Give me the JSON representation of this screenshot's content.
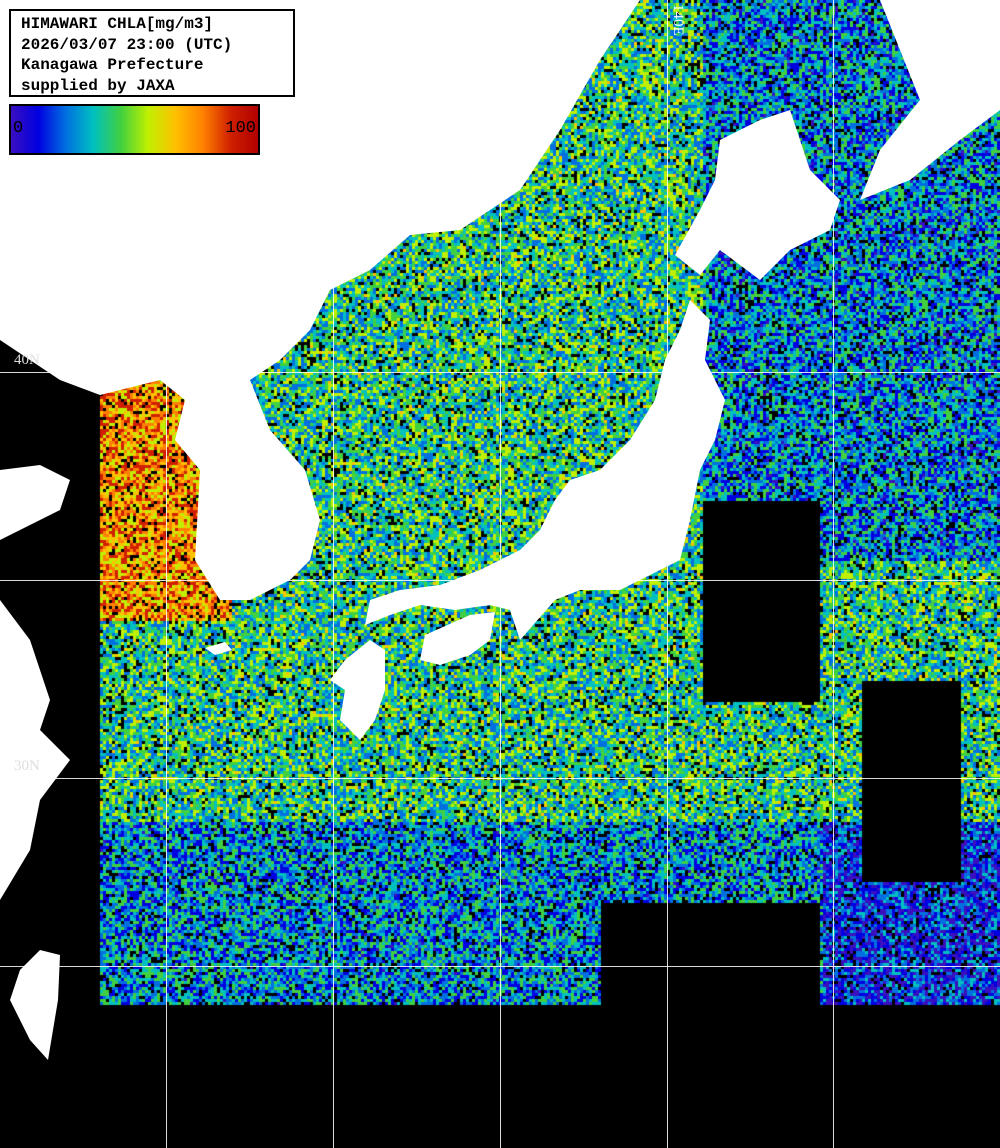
{
  "title_box": {
    "line1": "HIMAWARI CHLA[mg/m3]",
    "line2": "2026/03/07 23:00 (UTC)",
    "line3": "Kanagawa Prefecture",
    "line4": "supplied by JAXA"
  },
  "colorbar": {
    "min_label": "0",
    "max_label": "100",
    "colors": [
      "#3a0fbf",
      "#0000e0",
      "#0070e0",
      "#00c0c0",
      "#40d040",
      "#c0f000",
      "#ffc000",
      "#ff8000",
      "#d02000",
      "#b00000"
    ]
  },
  "grid_labels": {
    "lon_140": "140E",
    "lat_40": "40N",
    "lat_30": "30N"
  },
  "colors": {
    "land": "#ffffff",
    "no_data": "#000000",
    "grid": "#ffffff"
  }
}
